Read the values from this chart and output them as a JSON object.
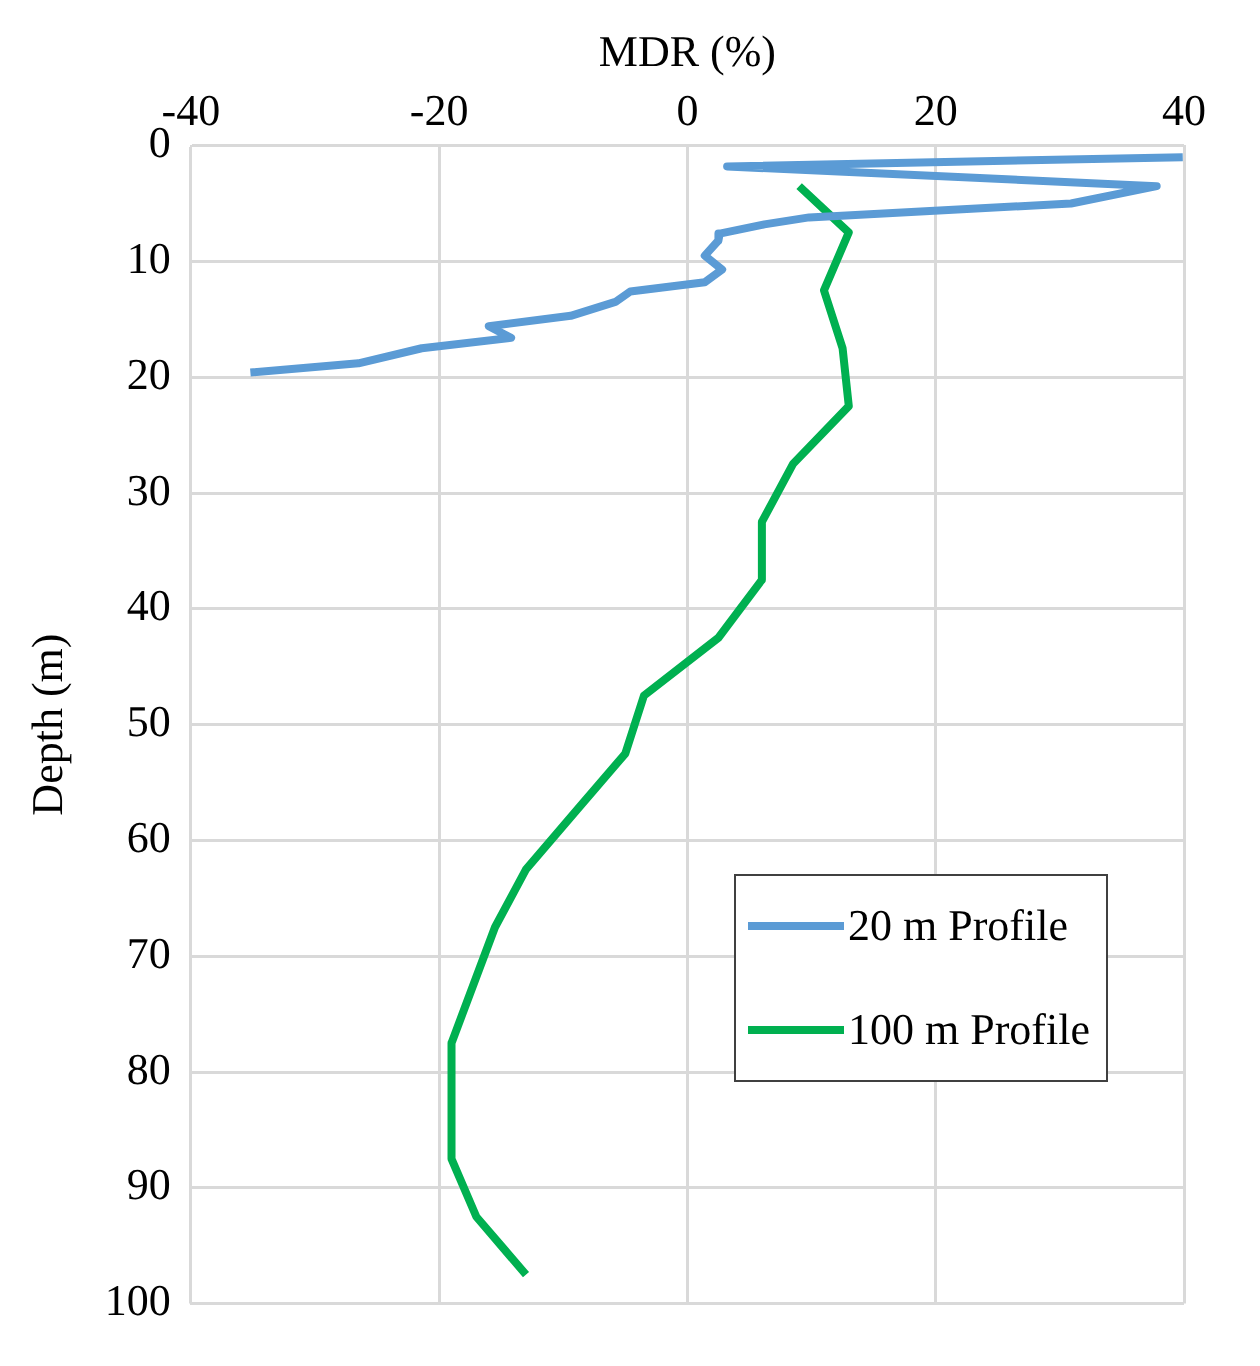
{
  "chart_data": {
    "type": "line",
    "xlabel": "MDR (%)",
    "ylabel": "Depth (m)",
    "xlim": [
      -40,
      40
    ],
    "xticks": [
      -40,
      -20,
      0,
      20,
      40
    ],
    "ylim": [
      100,
      0
    ],
    "yticks": [
      0,
      10,
      20,
      30,
      40,
      50,
      60,
      70,
      80,
      90,
      100
    ],
    "grid": true,
    "legend": "bottom right",
    "marker": "none",
    "line_style": "solid",
    "series": [
      {
        "name": "20 m Profile",
        "color": "#5b9bd5",
        "x": [
          39.9,
          3.2,
          37.8,
          30.9,
          9.8,
          6.2,
          2.6,
          2.5,
          1.4,
          2.8,
          1.4,
          -4.6,
          -5.8,
          -9.4,
          -16,
          -14.2,
          -21.4,
          -26.5,
          -35.2
        ],
        "values": [
          1,
          1.8,
          3.5,
          5,
          6.2,
          6.8,
          7.6,
          8.2,
          9.5,
          10.7,
          11.8,
          12.6,
          13.5,
          14.7,
          15.6,
          16.6,
          17.5,
          18.8,
          19.6
        ]
      },
      {
        "name": "100 m Profile",
        "color": "#00b050",
        "x": [
          9,
          13,
          11,
          12.5,
          13,
          8.5,
          6,
          6,
          2.5,
          -3.5,
          -5,
          -9,
          -13,
          -15.5,
          -19,
          -19,
          -17,
          -13
        ],
        "values": [
          3.5,
          7.5,
          12.5,
          17.5,
          22.5,
          27.5,
          32.5,
          37.5,
          42.5,
          47.5,
          52.5,
          57.5,
          62.5,
          67.5,
          77.5,
          87.5,
          92.5,
          97.5
        ]
      }
    ]
  }
}
